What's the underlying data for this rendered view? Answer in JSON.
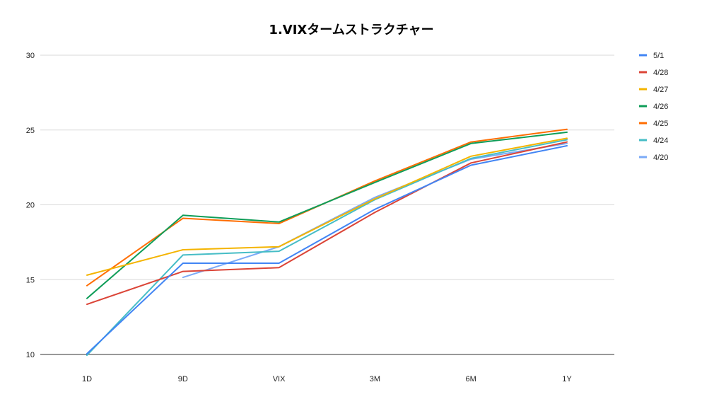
{
  "chart_data": {
    "type": "line",
    "title": "1.VIXタームストラクチャー",
    "xlabel": "",
    "ylabel": "",
    "categories": [
      "1D",
      "9D",
      "VIX",
      "3M",
      "6M",
      "1Y"
    ],
    "ylim": [
      10,
      30
    ],
    "yticks": [
      10,
      15,
      20,
      25,
      30
    ],
    "grid": true,
    "legend_position": "right",
    "series": [
      {
        "name": "5/1",
        "color": "#4285f4",
        "values": [
          10.05,
          16.1,
          16.1,
          19.7,
          22.65,
          23.95
        ]
      },
      {
        "name": "4/28",
        "color": "#db4437",
        "values": [
          13.35,
          15.55,
          15.8,
          19.5,
          22.8,
          24.2
        ]
      },
      {
        "name": "4/27",
        "color": "#f4b400",
        "values": [
          15.3,
          17.0,
          17.2,
          20.4,
          23.25,
          24.45
        ]
      },
      {
        "name": "4/26",
        "color": "#0f9d58",
        "values": [
          13.75,
          19.3,
          18.85,
          21.5,
          24.1,
          24.85
        ]
      },
      {
        "name": "4/25",
        "color": "#ff6d01",
        "values": [
          14.6,
          19.1,
          18.75,
          21.6,
          24.2,
          25.05
        ]
      },
      {
        "name": "4/24",
        "color": "#46bdc6",
        "values": [
          9.95,
          16.65,
          16.9,
          20.35,
          23.1,
          24.35
        ]
      },
      {
        "name": "4/20",
        "color": "#7baaf7",
        "values": [
          null,
          15.15,
          17.2,
          20.5,
          23.05,
          24.1
        ]
      }
    ]
  }
}
